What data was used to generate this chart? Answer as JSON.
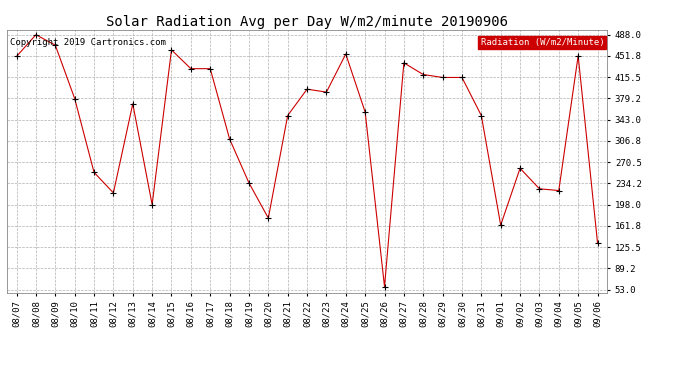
{
  "title": "Solar Radiation Avg per Day W/m2/minute 20190906",
  "copyright": "Copyright 2019 Cartronics.com",
  "legend_label": "Radiation (W/m2/Minute)",
  "dates": [
    "08/07",
    "08/08",
    "08/09",
    "08/10",
    "08/11",
    "08/12",
    "08/13",
    "08/14",
    "08/15",
    "08/16",
    "08/17",
    "08/18",
    "08/19",
    "08/20",
    "08/21",
    "08/22",
    "08/23",
    "08/24",
    "08/25",
    "08/26",
    "08/27",
    "08/28",
    "08/29",
    "08/30",
    "08/31",
    "09/01",
    "09/02",
    "09/03",
    "09/04",
    "09/05",
    "09/06"
  ],
  "values": [
    451.0,
    488.0,
    470.0,
    379.0,
    253.0,
    218.0,
    370.0,
    198.0,
    462.0,
    430.0,
    430.0,
    310.0,
    235.0,
    175.0,
    350.0,
    395.0,
    390.0,
    455.0,
    356.0,
    58.0,
    440.0,
    420.0,
    415.0,
    415.0,
    350.0,
    163.0,
    260.0,
    225.0,
    222.0,
    452.0,
    133.0
  ],
  "line_color": "#cc0000",
  "marker_color": "#000000",
  "background_color": "#ffffff",
  "grid_color": "#b0b0b0",
  "legend_bg": "#cc0000",
  "legend_fg": "#ffffff",
  "ymin": 53.0,
  "ymax": 488.0,
  "yticks": [
    53.0,
    89.2,
    125.5,
    161.8,
    198.0,
    234.2,
    270.5,
    306.8,
    343.0,
    379.2,
    415.5,
    451.8,
    488.0
  ],
  "title_fontsize": 10,
  "tick_fontsize": 6.5,
  "copyright_fontsize": 6.5
}
